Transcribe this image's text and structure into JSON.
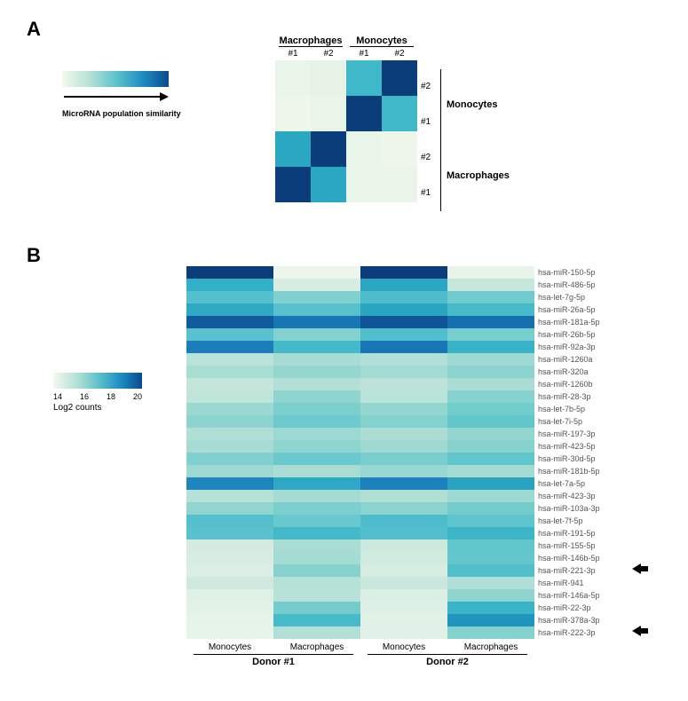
{
  "panelA": {
    "label": "A",
    "legend": {
      "gradient_colors": [
        "#f2f9ed",
        "#b8e2d8",
        "#5fc4cc",
        "#1f8fc4",
        "#0a4a8f"
      ],
      "caption": "MicroRNA population similarity"
    },
    "sim_matrix": {
      "col_group_labels": [
        "Macrophages",
        "Monocytes"
      ],
      "col_sub_labels": [
        "#1",
        "#2",
        "#1",
        "#2"
      ],
      "row_sub_labels": [
        "#2",
        "#1",
        "#2",
        "#1"
      ],
      "row_group_labels": [
        "Monocytes",
        "Macrophages"
      ],
      "colors": [
        [
          "#e9f5e8",
          "#e6f3e6",
          "#3fb8c9",
          "#0a3d7a"
        ],
        [
          "#eef6ea",
          "#e9f5e8",
          "#0a3d7a",
          "#3fb8c9"
        ],
        [
          "#2aa8c2",
          "#0a3d7a",
          "#e9f5e8",
          "#eef6ea"
        ],
        [
          "#0a3d7a",
          "#2aa8c2",
          "#eaf5e9",
          "#e9f5e8"
        ]
      ]
    }
  },
  "panelB": {
    "label": "B",
    "legend": {
      "gradient_colors": [
        "#f2f9ed",
        "#b8e2d8",
        "#5fc4cc",
        "#1f8fc4",
        "#0a4a8f"
      ],
      "ticks": [
        "14",
        "16",
        "18",
        "20"
      ],
      "caption": "Log2 counts"
    },
    "col_labels": [
      "Monocytes",
      "Macrophages",
      "Monocytes",
      "Macrophages"
    ],
    "donor_labels": [
      "Donor #1",
      "Donor #2"
    ],
    "rows": [
      {
        "name": "hsa-miR-150-5p",
        "c": [
          "#0a3d7a",
          "#edf6eb",
          "#0a3d7a",
          "#e9f4e8"
        ]
      },
      {
        "name": "hsa-miR-486-5p",
        "c": [
          "#33b0c7",
          "#d7ede2",
          "#2ba6c1",
          "#c7e6dc"
        ]
      },
      {
        "name": "hsa-let-7g-5p",
        "c": [
          "#55c0cd",
          "#7fd0cf",
          "#4ebdcb",
          "#6fcbcd"
        ]
      },
      {
        "name": "hsa-miR-26a-5p",
        "c": [
          "#2fa9c3",
          "#58c1ce",
          "#2aa5c0",
          "#46bac9"
        ]
      },
      {
        "name": "hsa-miR-181a-5p",
        "c": [
          "#115a9e",
          "#1976b5",
          "#0f5499",
          "#1670b0"
        ]
      },
      {
        "name": "hsa-miR-26b-5p",
        "c": [
          "#59c1ce",
          "#84d2d0",
          "#50becc",
          "#76cecd"
        ]
      },
      {
        "name": "hsa-miR-92a-3p",
        "c": [
          "#1b7db9",
          "#44b9c9",
          "#1877b4",
          "#38b2c6"
        ]
      },
      {
        "name": "hsa-miR-1260a",
        "c": [
          "#b9e2d8",
          "#a6dcd4",
          "#b3e0d6",
          "#9ed9d2"
        ]
      },
      {
        "name": "hsa-miR-320a",
        "c": [
          "#a8ddd4",
          "#94d6d0",
          "#a2dbd3",
          "#8ad3ce"
        ]
      },
      {
        "name": "hsa-miR-1260b",
        "c": [
          "#c3e5da",
          "#b2e0d6",
          "#bde3d8",
          "#a9ddd4"
        ]
      },
      {
        "name": "hsa-miR-28-3p",
        "c": [
          "#bfe4d9",
          "#8fd5cf",
          "#b9e2d8",
          "#85d2ce"
        ]
      },
      {
        "name": "hsa-let-7b-5p",
        "c": [
          "#9ad8d1",
          "#7ccfcd",
          "#93d6d0",
          "#71cccc"
        ]
      },
      {
        "name": "hsa-let-7i-5p",
        "c": [
          "#8cd4cf",
          "#6ccace",
          "#84d2ce",
          "#62c6cd"
        ]
      },
      {
        "name": "hsa-miR-197-3p",
        "c": [
          "#b1dfd6",
          "#9cd9d2",
          "#abddd4",
          "#93d6d0"
        ]
      },
      {
        "name": "hsa-miR-423-5p",
        "c": [
          "#a6dcd4",
          "#8ed5cf",
          "#9fdad2",
          "#85d2ce"
        ]
      },
      {
        "name": "hsa-miR-30d-5p",
        "c": [
          "#7fd0cf",
          "#6ac9cd",
          "#78cecd",
          "#60c5cd"
        ]
      },
      {
        "name": "hsa-miR-181b-5p",
        "c": [
          "#9dd9d2",
          "#a9ddd4",
          "#97d7d1",
          "#a2dbd3"
        ]
      },
      {
        "name": "hsa-let-7a-5p",
        "c": [
          "#1f86bd",
          "#2fa9c3",
          "#1c80ba",
          "#29a2bf"
        ]
      },
      {
        "name": "hsa-miR-423-3p",
        "c": [
          "#b6e1d7",
          "#a4dbd3",
          "#b0dfd6",
          "#9cd9d2"
        ]
      },
      {
        "name": "hsa-miR-103a-3p",
        "c": [
          "#91d5d0",
          "#7bcfcd",
          "#8ad3ce",
          "#72cccc"
        ]
      },
      {
        "name": "hsa-let-7f-5p",
        "c": [
          "#55c0cd",
          "#67c8cd",
          "#4ebdcb",
          "#5ec4cd"
        ]
      },
      {
        "name": "hsa-miR-191-5p",
        "c": [
          "#5ac1ce",
          "#44b9c9",
          "#53bfcd",
          "#3cb5c7"
        ]
      },
      {
        "name": "hsa-miR-155-5p",
        "c": [
          "#d3ebe0",
          "#a9ddd4",
          "#cde9de",
          "#62c6cd"
        ]
      },
      {
        "name": "hsa-miR-146b-5p",
        "c": [
          "#d7ede2",
          "#a4dbd3",
          "#d1eade",
          "#65c7cd"
        ]
      },
      {
        "name": "hsa-miR-221-3p",
        "c": [
          "#dceee4",
          "#87d2ce",
          "#d6ece1",
          "#51becc"
        ],
        "arrow": true
      },
      {
        "name": "hsa-miR-941",
        "c": [
          "#cfe9de",
          "#b5e1d7",
          "#c9e7dc",
          "#aeded5"
        ]
      },
      {
        "name": "hsa-miR-146a-5p",
        "c": [
          "#dff0e5",
          "#b8e2d8",
          "#daeee3",
          "#8fd5cf"
        ]
      },
      {
        "name": "hsa-miR-22-3p",
        "c": [
          "#e3f2e7",
          "#74cdcc",
          "#def0e5",
          "#3bb4c7"
        ]
      },
      {
        "name": "hsa-miR-378a-3p",
        "c": [
          "#e6f3e8",
          "#47bac9",
          "#e1f1e6",
          "#2193bf"
        ]
      },
      {
        "name": "hsa-miR-222-3p",
        "c": [
          "#e7f4e9",
          "#b2e0d6",
          "#e2f1e7",
          "#83d2ce"
        ],
        "arrow": true
      }
    ]
  },
  "style": {
    "bg": "#ffffff",
    "text_color": "#000000",
    "row_label_color": "#666666",
    "cell_width_b": 98,
    "cell_height_b": 14,
    "cell_size_a": 40,
    "font_family": "Arial"
  }
}
